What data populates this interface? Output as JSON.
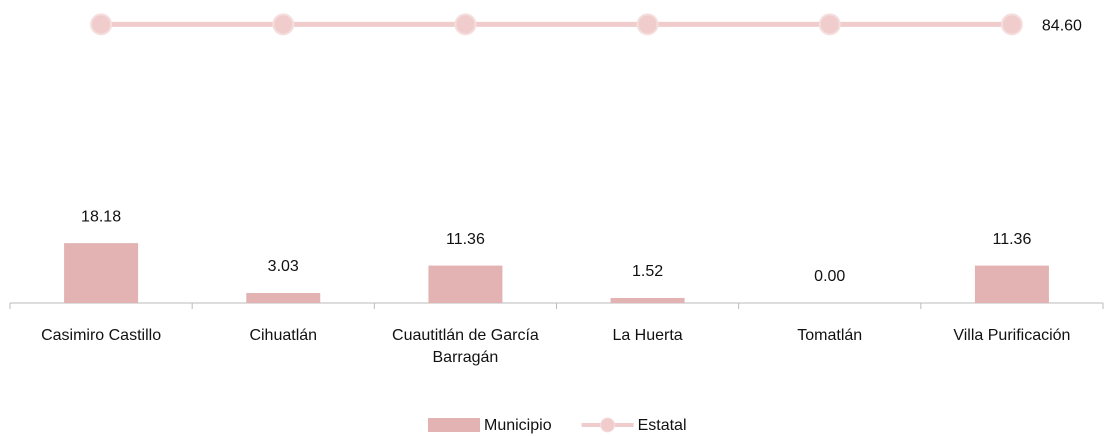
{
  "chart_data": {
    "type": "bar",
    "categories": [
      "Casimiro Castillo",
      "Cihuatlán",
      "Cuautitlán de García Barragán",
      "La Huerta",
      "Tomatlán",
      "Villa Purificación"
    ],
    "series": [
      {
        "name": "Municipio",
        "type": "bar",
        "color": "#e3b3b3",
        "values": [
          18.18,
          3.03,
          11.36,
          1.52,
          0.0,
          11.36
        ],
        "value_labels": [
          "18.18",
          "3.03",
          "11.36",
          "1.52",
          "0.00",
          "11.36"
        ]
      },
      {
        "name": "Estatal",
        "type": "line",
        "color": "#f0cccc",
        "values": [
          84.6,
          84.6,
          84.6,
          84.6,
          84.6,
          84.6
        ],
        "value_labels": [
          null,
          null,
          null,
          null,
          null,
          "84.60"
        ]
      }
    ],
    "ylim": [
      0,
      92
    ],
    "legend": "bottom"
  }
}
